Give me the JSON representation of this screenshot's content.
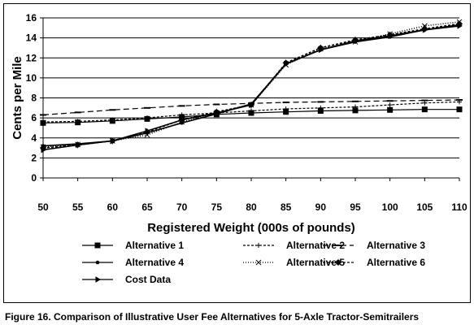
{
  "figure": {
    "caption": "Figure 16. Comparison of Illustrative User Fee Alternatives for 5-Axle Tractor-Semitrailers"
  },
  "chart_data": {
    "type": "line",
    "title": "",
    "xlabel": "Registered Weight (000s of pounds)",
    "ylabel": "Cents per Mile",
    "xlim": [
      50,
      110
    ],
    "ylim": [
      0,
      16
    ],
    "x_ticks": [
      "50",
      "55",
      "60",
      "65",
      "70",
      "75",
      "80",
      "85",
      "90",
      "95",
      "100",
      "105",
      "110"
    ],
    "y_ticks": [
      "0",
      "2",
      "4",
      "6",
      "8",
      "10",
      "12",
      "14",
      "16"
    ],
    "grid": "horizontal",
    "legend_position": "bottom",
    "x": [
      50,
      55,
      60,
      65,
      70,
      75,
      80,
      85,
      90,
      95,
      100,
      105,
      110
    ],
    "series": [
      {
        "name": "Alternative 1",
        "style": "solid",
        "marker": "square",
        "color": "#000000",
        "values": [
          5.5,
          5.55,
          5.7,
          5.9,
          6.1,
          6.35,
          6.5,
          6.6,
          6.7,
          6.75,
          6.8,
          6.85,
          6.85
        ]
      },
      {
        "name": "Alternative 2",
        "style": "dotted",
        "marker": "plus",
        "color": "#000000",
        "values": [
          5.6,
          5.65,
          5.8,
          6.0,
          6.3,
          6.5,
          6.7,
          6.9,
          7.0,
          7.1,
          7.3,
          7.5,
          7.6
        ]
      },
      {
        "name": "Alternative 3",
        "style": "dashed",
        "marker": "dash",
        "color": "#000000",
        "values": [
          6.3,
          6.55,
          6.8,
          7.0,
          7.2,
          7.35,
          7.45,
          7.55,
          7.6,
          7.65,
          7.7,
          7.75,
          7.8
        ]
      },
      {
        "name": "Alternative 4",
        "style": "solid",
        "marker": "dot",
        "color": "#000000",
        "values": [
          3.2,
          3.4,
          3.7,
          4.5,
          5.5,
          6.4,
          7.4,
          11.4,
          12.8,
          13.6,
          14.1,
          14.8,
          15.3
        ]
      },
      {
        "name": "Alternative 5",
        "style": "fine-dotted",
        "marker": "asterisk",
        "color": "#000000",
        "values": [
          3.1,
          3.35,
          3.7,
          4.3,
          5.6,
          6.5,
          7.3,
          11.3,
          12.9,
          13.6,
          14.4,
          15.2,
          15.6
        ]
      },
      {
        "name": "Alternative 6",
        "style": "dotted",
        "marker": "star",
        "color": "#000000",
        "values": [
          3.0,
          3.3,
          3.7,
          4.6,
          5.8,
          6.6,
          7.3,
          11.5,
          13.0,
          13.8,
          14.3,
          14.9,
          15.4
        ]
      },
      {
        "name": "Cost Data",
        "style": "solid",
        "marker": "arrow",
        "color": "#000000",
        "values": [
          2.8,
          3.3,
          3.7,
          4.7,
          5.8,
          6.5,
          7.3,
          11.4,
          12.8,
          13.7,
          14.2,
          14.8,
          15.2
        ]
      }
    ]
  }
}
